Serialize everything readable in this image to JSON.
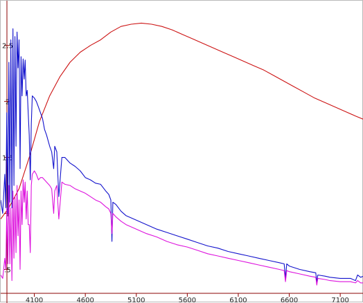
{
  "chart_data": {
    "type": "line",
    "title": "",
    "xlabel": "",
    "ylabel": "",
    "xlim": [
      3770,
      7330
    ],
    "ylim": [
      0.2,
      2.9
    ],
    "x_ticks": [
      4100,
      4600,
      5100,
      5600,
      6100,
      6600,
      7100
    ],
    "x_tick_labels": [
      "4100",
      "4600",
      "5100",
      "5600",
      "6100",
      "6600",
      "7100"
    ],
    "y_ticks": [
      0.5,
      1,
      1.5,
      2,
      2.5
    ],
    "y_tick_labels": [
      ".5",
      "1",
      "1.5",
      "2",
      "2.5"
    ],
    "grid": false,
    "legend": "none",
    "series": [
      {
        "color": "#cc1111",
        "x": [
          3770,
          3850,
          3950,
          4050,
          4150,
          4250,
          4350,
          4450,
          4550,
          4650,
          4750,
          4850,
          4950,
          5050,
          5150,
          5250,
          5350,
          5450,
          5550,
          5650,
          5750,
          5850,
          5950,
          6050,
          6150,
          6250,
          6350,
          6450,
          6550,
          6650,
          6750,
          6850,
          6950,
          7050,
          7150,
          7250,
          7330
        ],
        "values": [
          0.95,
          1.05,
          1.22,
          1.5,
          1.82,
          2.05,
          2.22,
          2.35,
          2.44,
          2.5,
          2.55,
          2.62,
          2.67,
          2.69,
          2.7,
          2.69,
          2.67,
          2.64,
          2.6,
          2.56,
          2.52,
          2.48,
          2.44,
          2.4,
          2.36,
          2.32,
          2.28,
          2.23,
          2.18,
          2.13,
          2.08,
          2.03,
          1.99,
          1.95,
          1.91,
          1.87,
          1.84
        ]
      },
      {
        "color": "#1111cc",
        "x": [
          3770,
          3790,
          3810,
          3820,
          3830,
          3840,
          3850,
          3860,
          3870,
          3880,
          3890,
          3900,
          3910,
          3920,
          3930,
          3940,
          3950,
          3960,
          3970,
          3980,
          3990,
          4000,
          4010,
          4020,
          4030,
          4040,
          4050,
          4060,
          4070,
          4080,
          4100,
          4120,
          4140,
          4160,
          4180,
          4200,
          4220,
          4250,
          4270,
          4290,
          4300,
          4320,
          4340,
          4370,
          4400,
          4450,
          4500,
          4550,
          4600,
          4650,
          4700,
          4750,
          4800,
          4830,
          4850,
          4861,
          4870,
          4900,
          4950,
          5000,
          5100,
          5200,
          5300,
          5400,
          5500,
          5600,
          5700,
          5800,
          5900,
          6000,
          6100,
          6200,
          6300,
          6400,
          6500,
          6550,
          6563,
          6575,
          6600,
          6700,
          6800,
          6860,
          6870,
          6880,
          6950,
          7000,
          7100,
          7200,
          7250,
          7270,
          7300,
          7330
        ],
        "values": [
          1.12,
          1.0,
          1.35,
          1.05,
          1.9,
          1.0,
          2.35,
          1.1,
          2.55,
          1.05,
          2.65,
          1.25,
          2.58,
          1.6,
          2.62,
          2.3,
          2.55,
          1.4,
          2.4,
          2.05,
          2.38,
          2.2,
          2.37,
          2.05,
          2.1,
          1.9,
          1.7,
          1.3,
          1.8,
          2.05,
          2.03,
          2.0,
          1.95,
          1.9,
          1.85,
          1.75,
          1.7,
          1.6,
          1.55,
          1.4,
          1.6,
          1.55,
          1.15,
          1.5,
          1.5,
          1.45,
          1.42,
          1.38,
          1.32,
          1.3,
          1.27,
          1.26,
          1.2,
          1.17,
          1.12,
          0.75,
          1.1,
          1.08,
          1.02,
          0.98,
          0.94,
          0.9,
          0.86,
          0.83,
          0.8,
          0.77,
          0.74,
          0.71,
          0.69,
          0.66,
          0.64,
          0.62,
          0.6,
          0.58,
          0.56,
          0.55,
          0.42,
          0.55,
          0.53,
          0.5,
          0.48,
          0.47,
          0.39,
          0.45,
          0.44,
          0.43,
          0.42,
          0.42,
          0.4,
          0.45,
          0.43,
          0.44
        ]
      },
      {
        "color": "#dd11dd",
        "x": [
          3770,
          3790,
          3810,
          3820,
          3830,
          3840,
          3850,
          3860,
          3870,
          3880,
          3890,
          3900,
          3910,
          3920,
          3930,
          3940,
          3950,
          3960,
          3970,
          3980,
          3990,
          4000,
          4010,
          4020,
          4030,
          4040,
          4050,
          4060,
          4070,
          4080,
          4100,
          4120,
          4140,
          4160,
          4180,
          4200,
          4220,
          4250,
          4270,
          4290,
          4300,
          4320,
          4340,
          4370,
          4400,
          4450,
          4500,
          4550,
          4600,
          4650,
          4700,
          4750,
          4800,
          4830,
          4850,
          4861,
          4870,
          4900,
          4950,
          5000,
          5100,
          5200,
          5300,
          5400,
          5500,
          5600,
          5700,
          5800,
          5900,
          6000,
          6100,
          6200,
          6300,
          6400,
          6500,
          6550,
          6563,
          6575,
          6600,
          6700,
          6800,
          6860,
          6870,
          6880,
          6950,
          7000,
          7100,
          7200,
          7250,
          7270,
          7300,
          7330
        ],
        "values": [
          0.45,
          0.42,
          0.6,
          0.5,
          1.05,
          0.55,
          1.25,
          0.55,
          1.05,
          0.4,
          1.2,
          0.6,
          1.15,
          0.65,
          1.25,
          0.8,
          1.12,
          0.5,
          1.2,
          0.9,
          1.3,
          1.1,
          1.28,
          0.95,
          1.2,
          0.9,
          0.9,
          0.65,
          1.25,
          1.35,
          1.38,
          1.35,
          1.3,
          1.32,
          1.32,
          1.3,
          1.28,
          1.25,
          1.22,
          1.0,
          1.2,
          1.25,
          0.95,
          1.28,
          1.26,
          1.25,
          1.22,
          1.2,
          1.18,
          1.15,
          1.12,
          1.1,
          1.06,
          1.04,
          1.0,
          0.82,
          1.0,
          0.97,
          0.93,
          0.9,
          0.86,
          0.82,
          0.79,
          0.75,
          0.72,
          0.7,
          0.67,
          0.64,
          0.62,
          0.6,
          0.58,
          0.56,
          0.54,
          0.52,
          0.5,
          0.49,
          0.39,
          0.49,
          0.48,
          0.46,
          0.44,
          0.43,
          0.36,
          0.42,
          0.41,
          0.4,
          0.39,
          0.39,
          0.38,
          0.4,
          0.38,
          0.38
        ]
      }
    ]
  }
}
